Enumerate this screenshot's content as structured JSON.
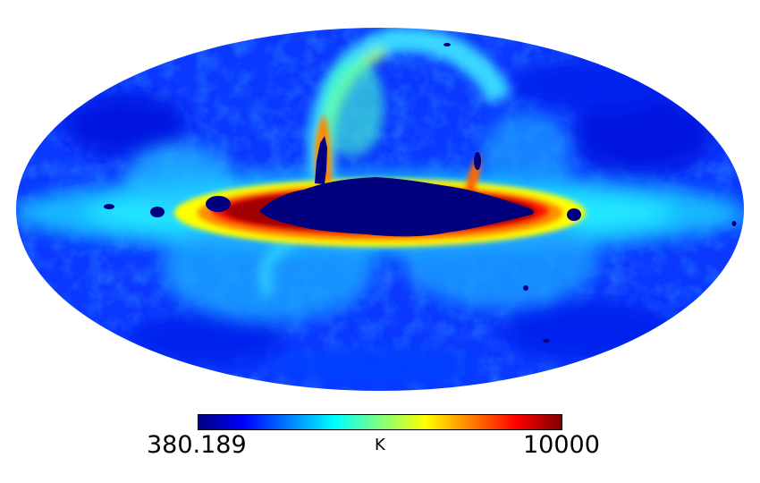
{
  "map": {
    "projection": "mollweide",
    "colormap": "jet",
    "colors": [
      "#00007f",
      "#0000ff",
      "#007fff",
      "#00ffff",
      "#7fff7f",
      "#ffff00",
      "#ff7f00",
      "#ff0000",
      "#7f0000"
    ],
    "masked_color": "#00007f"
  },
  "colorbar": {
    "min_label": "380.189",
    "max_label": "10000",
    "unit": "K"
  }
}
